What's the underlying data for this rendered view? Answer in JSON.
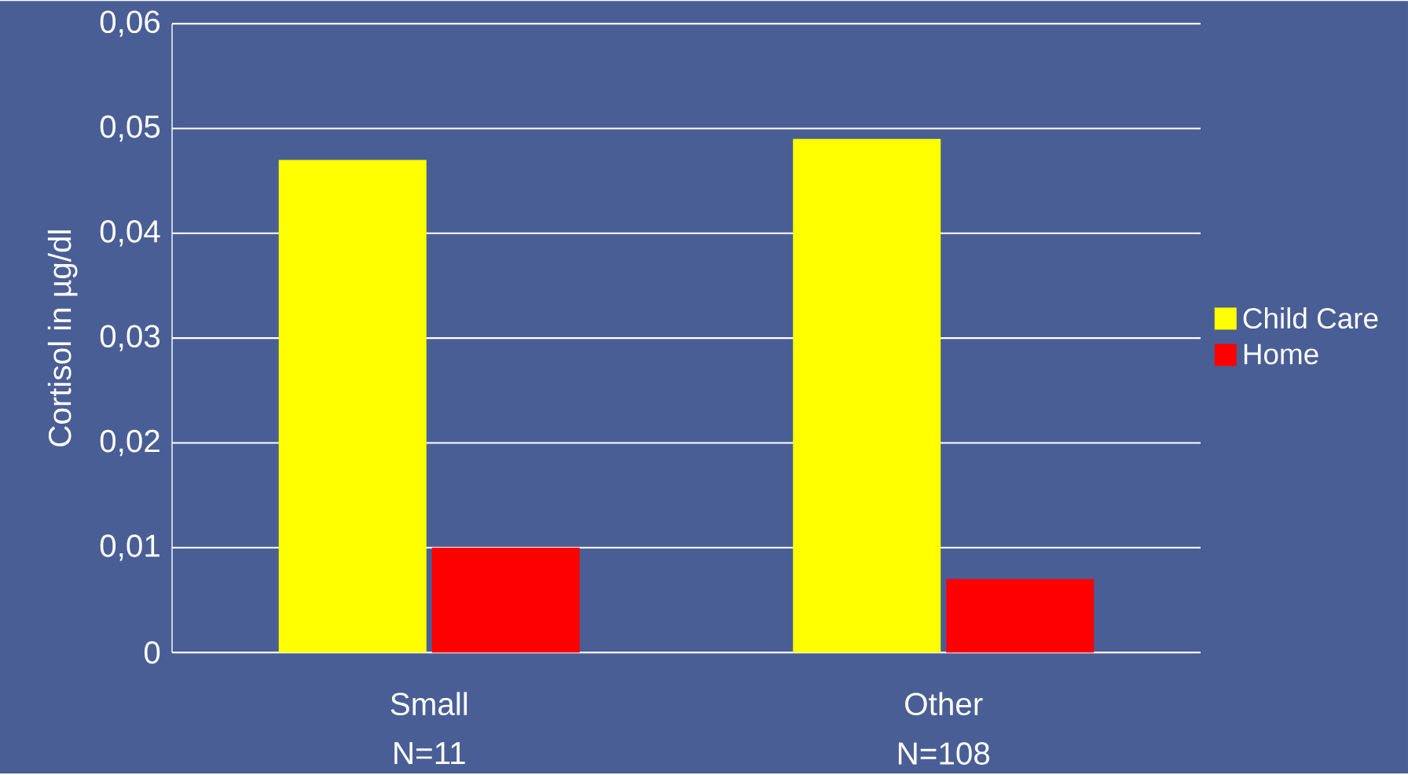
{
  "chart_data": {
    "type": "bar",
    "ylabel": "Cortisol in µg/dl",
    "categories": [
      "Small",
      "Other"
    ],
    "series": [
      {
        "name": "Child Care",
        "color": "#ffff00",
        "values": [
          0.047,
          0.049
        ]
      },
      {
        "name": "Home",
        "color": "#ff0000",
        "values": [
          0.01,
          0.007
        ]
      }
    ],
    "ylim": [
      0,
      0.06
    ],
    "yticks": [
      0,
      {
        "value": 0.01,
        "label": "0,01"
      },
      {
        "value": 0.02,
        "label": "0,02"
      },
      {
        "value": 0.03,
        "label": "0,03"
      },
      {
        "value": 0.04,
        "label": "0,04"
      },
      {
        "value": 0.05,
        "label": "0,05"
      },
      {
        "value": 0.06,
        "label": "0,06"
      }
    ],
    "grid": "y",
    "legend": "right",
    "annotations": [
      "N=11",
      "N=108"
    ]
  }
}
